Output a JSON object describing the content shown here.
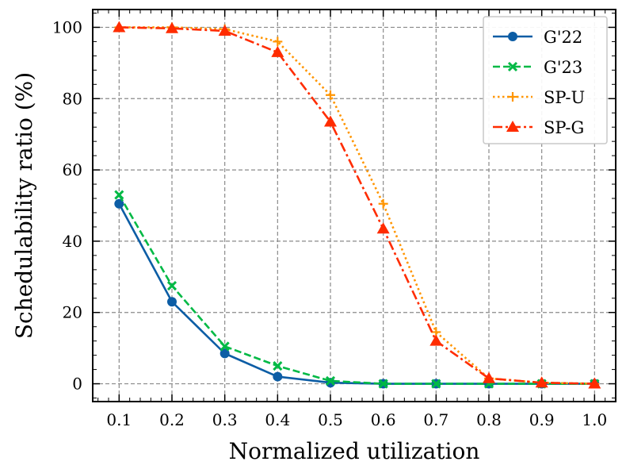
{
  "chart_data": {
    "type": "line",
    "title": "",
    "xlabel": "Normalized utilization",
    "ylabel": "Schedulability ratio (%)",
    "x": [
      0.1,
      0.2,
      0.3,
      0.4,
      0.5,
      0.6,
      0.7,
      0.8,
      0.9,
      1.0
    ],
    "x_tick_labels": [
      "0.1",
      "0.2",
      "0.3",
      "0.4",
      "0.5",
      "0.6",
      "0.7",
      "0.8",
      "0.9",
      "1.0"
    ],
    "y_ticks": [
      0,
      20,
      40,
      60,
      80,
      100
    ],
    "y_tick_labels": [
      "0",
      "20",
      "40",
      "60",
      "80",
      "100"
    ],
    "xlim": [
      0.05,
      1.04
    ],
    "ylim": [
      -5,
      105
    ],
    "grid": true,
    "legend_position": "top-right",
    "series": [
      {
        "name": "G'22",
        "color": "#0C5DA5",
        "dash": "solid",
        "marker": "circle",
        "values": [
          50.5,
          23,
          8.5,
          2,
          0.3,
          0,
          0,
          0,
          0,
          0
        ]
      },
      {
        "name": "G'23",
        "color": "#00B945",
        "dash": "dashed",
        "marker": "x",
        "values": [
          53,
          27.5,
          10.5,
          5,
          0.8,
          0,
          0,
          0,
          0,
          0
        ]
      },
      {
        "name": "SP-U",
        "color": "#FF9500",
        "dash": "dotted",
        "marker": "plus",
        "values": [
          100,
          100,
          99.5,
          96,
          81,
          50.5,
          14.5,
          1.5,
          0.3,
          0
        ]
      },
      {
        "name": "SP-G",
        "color": "#FF2C00",
        "dash": "dashdot",
        "marker": "triangle",
        "values": [
          100,
          99.7,
          99,
          93,
          73.5,
          43.5,
          12,
          1.5,
          0.3,
          0
        ]
      }
    ]
  }
}
